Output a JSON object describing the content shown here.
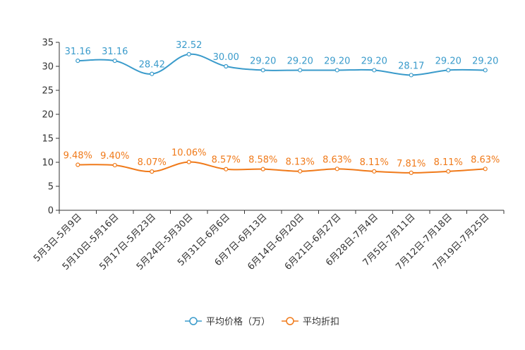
{
  "chart_data": {
    "type": "line",
    "title": "",
    "xlabel": "",
    "ylabel": "",
    "ylim": [
      0,
      35
    ],
    "yticks": [
      0,
      5,
      10,
      15,
      20,
      25,
      30,
      35
    ],
    "grid": false,
    "legend_position": "bottom-center",
    "categories": [
      "5月3日-5月9日",
      "5月10日-5月16日",
      "5月17日-5月23日",
      "5月24日-5月30日",
      "5月31日-6月6日",
      "6月7日-6月13日",
      "6月14日-6月20日",
      "6月21日-6月27日",
      "6月28日-7月4日",
      "7月5日-7月11日",
      "7月12日-7月18日",
      "7月19日-7月25日"
    ],
    "series": [
      {
        "name": "平均价格（万）",
        "color": "#3a9bcb",
        "values": [
          31.16,
          31.16,
          28.42,
          32.52,
          30.0,
          29.2,
          29.2,
          29.2,
          29.2,
          28.17,
          29.2,
          29.2
        ],
        "labels": [
          "31.16",
          "31.16",
          "28.42",
          "32.52",
          "30.00",
          "29.20",
          "29.20",
          "29.20",
          "29.20",
          "28.17",
          "29.20",
          "29.20"
        ]
      },
      {
        "name": "平均折扣",
        "color": "#f07a1a",
        "values": [
          9.48,
          9.4,
          8.07,
          10.06,
          8.57,
          8.58,
          8.13,
          8.63,
          8.11,
          7.81,
          8.11,
          8.63
        ],
        "labels": [
          "9.48%",
          "9.40%",
          "8.07%",
          "10.06%",
          "8.57%",
          "8.58%",
          "8.13%",
          "8.63%",
          "8.11%",
          "7.81%",
          "8.11%",
          "8.63%"
        ]
      }
    ]
  }
}
